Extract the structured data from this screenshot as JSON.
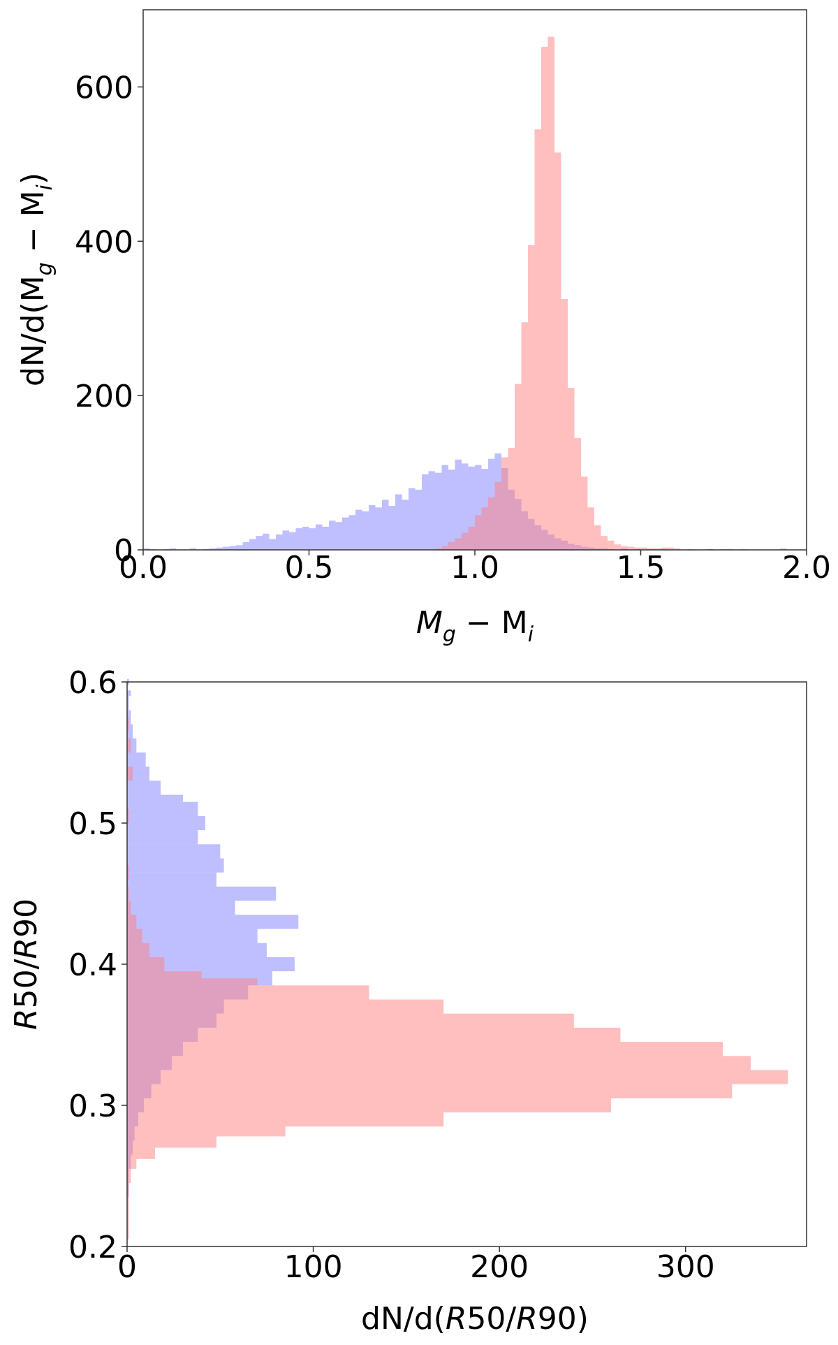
{
  "chart_data": [
    {
      "type": "histogram",
      "orientation": "vertical",
      "xlabel": {
        "pre": "M",
        "sub1": "g",
        "mid": " − M",
        "sub2": "i"
      },
      "ylabel": {
        "pre": "dN/d(M",
        "sub1": "g",
        "mid": " − M",
        "sub2": "i",
        "post": ")"
      },
      "xlim": [
        0.0,
        2.0
      ],
      "ylim": [
        0,
        700
      ],
      "xticks": [
        "0.0",
        "0.5",
        "1.0",
        "1.5",
        "2.0"
      ],
      "xtick_values": [
        0.0,
        0.5,
        1.0,
        1.5,
        2.0
      ],
      "yticks": [
        "0",
        "200",
        "400",
        "600"
      ],
      "ytick_values": [
        0,
        200,
        400,
        600
      ],
      "grid": false,
      "series": [
        {
          "color": "#7f7fff",
          "opacity": 0.5,
          "bins": [
            [
              0.0,
              0.02,
              2
            ],
            [
              0.02,
              0.04,
              1
            ],
            [
              0.06,
              0.08,
              1
            ],
            [
              0.08,
              0.1,
              2
            ],
            [
              0.14,
              0.16,
              2
            ],
            [
              0.18,
              0.2,
              1
            ],
            [
              0.2,
              0.22,
              2
            ],
            [
              0.22,
              0.24,
              3
            ],
            [
              0.24,
              0.26,
              4
            ],
            [
              0.26,
              0.28,
              5
            ],
            [
              0.28,
              0.3,
              6
            ],
            [
              0.3,
              0.32,
              10
            ],
            [
              0.32,
              0.34,
              14
            ],
            [
              0.34,
              0.36,
              18
            ],
            [
              0.36,
              0.38,
              21
            ],
            [
              0.38,
              0.4,
              14
            ],
            [
              0.4,
              0.42,
              20
            ],
            [
              0.42,
              0.44,
              25
            ],
            [
              0.44,
              0.46,
              23
            ],
            [
              0.46,
              0.48,
              28
            ],
            [
              0.48,
              0.5,
              30
            ],
            [
              0.5,
              0.52,
              28
            ],
            [
              0.52,
              0.54,
              33
            ],
            [
              0.54,
              0.56,
              30
            ],
            [
              0.56,
              0.58,
              38
            ],
            [
              0.58,
              0.6,
              36
            ],
            [
              0.6,
              0.62,
              42
            ],
            [
              0.62,
              0.64,
              45
            ],
            [
              0.64,
              0.66,
              52
            ],
            [
              0.66,
              0.68,
              50
            ],
            [
              0.68,
              0.7,
              58
            ],
            [
              0.7,
              0.72,
              55
            ],
            [
              0.72,
              0.74,
              65
            ],
            [
              0.74,
              0.76,
              57
            ],
            [
              0.76,
              0.78,
              72
            ],
            [
              0.78,
              0.8,
              65
            ],
            [
              0.8,
              0.82,
              80
            ],
            [
              0.82,
              0.84,
              78
            ],
            [
              0.84,
              0.86,
              98
            ],
            [
              0.86,
              0.88,
              102
            ],
            [
              0.88,
              0.9,
              100
            ],
            [
              0.9,
              0.92,
              110
            ],
            [
              0.92,
              0.94,
              104
            ],
            [
              0.94,
              0.96,
              117
            ],
            [
              0.96,
              0.98,
              112
            ],
            [
              0.98,
              1.0,
              108
            ],
            [
              1.0,
              1.02,
              110
            ],
            [
              1.02,
              1.04,
              105
            ],
            [
              1.04,
              1.06,
              118
            ],
            [
              1.06,
              1.08,
              125
            ],
            [
              1.08,
              1.1,
              106
            ],
            [
              1.1,
              1.12,
              78
            ],
            [
              1.12,
              1.14,
              66
            ],
            [
              1.14,
              1.16,
              50
            ],
            [
              1.16,
              1.18,
              40
            ],
            [
              1.18,
              1.2,
              32
            ],
            [
              1.2,
              1.22,
              26
            ],
            [
              1.22,
              1.24,
              20
            ],
            [
              1.24,
              1.26,
              15
            ],
            [
              1.26,
              1.28,
              12
            ],
            [
              1.28,
              1.3,
              8
            ],
            [
              1.3,
              1.32,
              6
            ],
            [
              1.32,
              1.34,
              4
            ],
            [
              1.34,
              1.36,
              3
            ],
            [
              1.36,
              1.38,
              2
            ],
            [
              1.38,
              1.4,
              2
            ],
            [
              1.4,
              1.42,
              1
            ],
            [
              1.44,
              1.46,
              2
            ],
            [
              1.48,
              1.5,
              1
            ],
            [
              1.52,
              1.54,
              1
            ],
            [
              1.56,
              1.58,
              1
            ],
            [
              1.7,
              1.72,
              1
            ],
            [
              1.76,
              1.78,
              1
            ]
          ]
        },
        {
          "color": "#ff7f7f",
          "opacity": 0.5,
          "bins": [
            [
              0.88,
              0.9,
              2
            ],
            [
              0.9,
              0.92,
              5
            ],
            [
              0.92,
              0.94,
              10
            ],
            [
              0.94,
              0.96,
              15
            ],
            [
              0.96,
              0.98,
              22
            ],
            [
              0.98,
              1.0,
              30
            ],
            [
              1.0,
              1.02,
              45
            ],
            [
              1.02,
              1.04,
              55
            ],
            [
              1.04,
              1.06,
              68
            ],
            [
              1.06,
              1.08,
              88
            ],
            [
              1.08,
              1.1,
              120
            ],
            [
              1.1,
              1.12,
              132
            ],
            [
              1.12,
              1.14,
              215
            ],
            [
              1.14,
              1.16,
              295
            ],
            [
              1.16,
              1.18,
              395
            ],
            [
              1.18,
              1.2,
              545
            ],
            [
              1.2,
              1.22,
              652
            ],
            [
              1.22,
              1.24,
              665
            ],
            [
              1.24,
              1.26,
              515
            ],
            [
              1.26,
              1.28,
              325
            ],
            [
              1.28,
              1.3,
              210
            ],
            [
              1.3,
              1.32,
              145
            ],
            [
              1.32,
              1.34,
              95
            ],
            [
              1.34,
              1.36,
              55
            ],
            [
              1.36,
              1.38,
              32
            ],
            [
              1.38,
              1.4,
              18
            ],
            [
              1.4,
              1.42,
              12
            ],
            [
              1.42,
              1.44,
              7
            ],
            [
              1.44,
              1.46,
              5
            ],
            [
              1.46,
              1.48,
              4
            ],
            [
              1.48,
              1.5,
              3
            ],
            [
              1.5,
              1.52,
              3
            ],
            [
              1.52,
              1.54,
              2
            ],
            [
              1.54,
              1.56,
              2
            ],
            [
              1.56,
              1.58,
              3
            ],
            [
              1.58,
              1.6,
              3
            ],
            [
              1.6,
              1.62,
              2
            ],
            [
              1.64,
              1.66,
              1
            ],
            [
              1.7,
              1.72,
              1
            ],
            [
              1.74,
              1.76,
              1
            ],
            [
              1.8,
              1.82,
              1
            ],
            [
              1.92,
              1.94,
              2
            ]
          ]
        }
      ]
    },
    {
      "type": "histogram",
      "orientation": "horizontal",
      "xlabel": {
        "pre": "dN/d(",
        "it": "R",
        "mid": "50/",
        "it2": "R",
        "post": "90)"
      },
      "ylabel": {
        "it": "R",
        "mid": "50/",
        "it2": "R",
        "post": "90"
      },
      "xlim": [
        0,
        365
      ],
      "ylim": [
        0.2,
        0.6
      ],
      "xticks": [
        "0",
        "100",
        "200",
        "300"
      ],
      "xtick_values": [
        0,
        100,
        200,
        300
      ],
      "yticks": [
        "0.2",
        "0.3",
        "0.4",
        "0.5",
        "0.6"
      ],
      "ytick_values": [
        0.2,
        0.3,
        0.4,
        0.5,
        0.6
      ],
      "grid": false,
      "series": [
        {
          "color": "#7f7fff",
          "opacity": 0.5,
          "bins": [
            [
              0.598,
              0.602,
              1
            ],
            [
              0.59,
              0.594,
              2
            ],
            [
              0.58,
              0.59,
              1
            ],
            [
              0.57,
              0.58,
              2
            ],
            [
              0.56,
              0.57,
              3
            ],
            [
              0.55,
              0.56,
              5
            ],
            [
              0.54,
              0.55,
              10
            ],
            [
              0.53,
              0.54,
              12
            ],
            [
              0.52,
              0.53,
              18
            ],
            [
              0.515,
              0.52,
              30
            ],
            [
              0.505,
              0.515,
              38
            ],
            [
              0.495,
              0.505,
              42
            ],
            [
              0.485,
              0.495,
              38
            ],
            [
              0.475,
              0.485,
              50
            ],
            [
              0.465,
              0.475,
              52
            ],
            [
              0.455,
              0.465,
              48
            ],
            [
              0.445,
              0.455,
              80
            ],
            [
              0.435,
              0.445,
              58
            ],
            [
              0.425,
              0.435,
              92
            ],
            [
              0.415,
              0.425,
              70
            ],
            [
              0.405,
              0.415,
              75
            ],
            [
              0.395,
              0.405,
              90
            ],
            [
              0.385,
              0.395,
              78
            ],
            [
              0.375,
              0.385,
              65
            ],
            [
              0.365,
              0.375,
              52
            ],
            [
              0.355,
              0.365,
              48
            ],
            [
              0.345,
              0.355,
              38
            ],
            [
              0.335,
              0.345,
              30
            ],
            [
              0.325,
              0.335,
              24
            ],
            [
              0.315,
              0.325,
              18
            ],
            [
              0.305,
              0.315,
              13
            ],
            [
              0.295,
              0.305,
              9
            ],
            [
              0.285,
              0.295,
              6
            ],
            [
              0.275,
              0.285,
              4
            ],
            [
              0.265,
              0.275,
              3
            ],
            [
              0.255,
              0.265,
              2
            ],
            [
              0.245,
              0.255,
              1
            ],
            [
              0.235,
              0.245,
              1
            ]
          ]
        },
        {
          "color": "#ff7f7f",
          "opacity": 0.5,
          "bins": [
            [
              0.565,
              0.575,
              1
            ],
            [
              0.55,
              0.56,
              2
            ],
            [
              0.53,
              0.54,
              3
            ],
            [
              0.5,
              0.51,
              1
            ],
            [
              0.46,
              0.47,
              1
            ],
            [
              0.455,
              0.46,
              0.5
            ],
            [
              0.445,
              0.455,
              1
            ],
            [
              0.435,
              0.445,
              2
            ],
            [
              0.425,
              0.435,
              5
            ],
            [
              0.415,
              0.425,
              8
            ],
            [
              0.405,
              0.415,
              12
            ],
            [
              0.395,
              0.405,
              20
            ],
            [
              0.39,
              0.395,
              40
            ],
            [
              0.385,
              0.39,
              70
            ],
            [
              0.375,
              0.385,
              130
            ],
            [
              0.365,
              0.375,
              170
            ],
            [
              0.355,
              0.365,
              240
            ],
            [
              0.345,
              0.355,
              265
            ],
            [
              0.335,
              0.345,
              320
            ],
            [
              0.325,
              0.335,
              335
            ],
            [
              0.315,
              0.325,
              355
            ],
            [
              0.305,
              0.315,
              325
            ],
            [
              0.295,
              0.305,
              260
            ],
            [
              0.285,
              0.295,
              170
            ],
            [
              0.278,
              0.285,
              85
            ],
            [
              0.27,
              0.278,
              48
            ],
            [
              0.262,
              0.27,
              15
            ],
            [
              0.255,
              0.262,
              5
            ],
            [
              0.245,
              0.255,
              2
            ],
            [
              0.235,
              0.245,
              1
            ],
            [
              0.225,
              0.235,
              1
            ],
            [
              0.215,
              0.225,
              1
            ],
            [
              0.205,
              0.215,
              1
            ]
          ]
        }
      ]
    }
  ]
}
